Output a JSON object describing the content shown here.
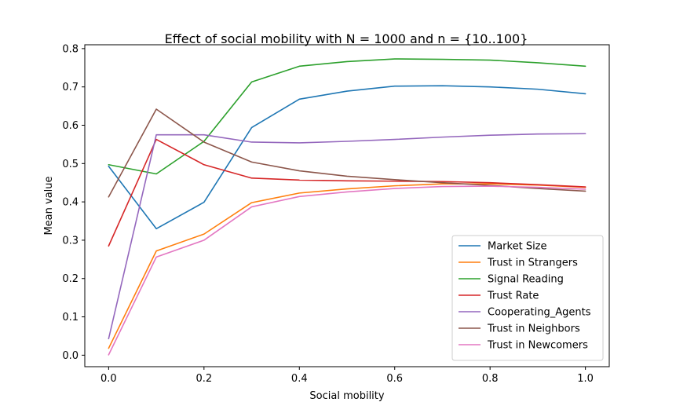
{
  "chart_data": {
    "type": "line",
    "title": "Effect of social mobility with N = 1000 and n = {10..100}",
    "xlabel": "Social mobility",
    "ylabel": "Mean value",
    "xlim": [
      -0.05,
      1.05
    ],
    "ylim": [
      -0.03,
      0.81
    ],
    "xticks": [
      0.0,
      0.2,
      0.4,
      0.6,
      0.8,
      1.0
    ],
    "xtick_labels": [
      "0.0",
      "0.2",
      "0.4",
      "0.6",
      "0.8",
      "1.0"
    ],
    "yticks": [
      0.0,
      0.1,
      0.2,
      0.3,
      0.4,
      0.5,
      0.6,
      0.7,
      0.8
    ],
    "ytick_labels": [
      "0.0",
      "0.1",
      "0.2",
      "0.3",
      "0.4",
      "0.5",
      "0.6",
      "0.7",
      "0.8"
    ],
    "grid": false,
    "legend_position": "bottom-right",
    "x": [
      0.0,
      0.1,
      0.2,
      0.3,
      0.4,
      0.5,
      0.6,
      0.7,
      0.8,
      0.9,
      1.0
    ],
    "series": [
      {
        "name": "Market Size",
        "color": "#1f77b4",
        "values": [
          0.493,
          0.33,
          0.399,
          0.594,
          0.668,
          0.689,
          0.702,
          0.703,
          0.7,
          0.694,
          0.682
        ]
      },
      {
        "name": "Trust in Strangers",
        "color": "#ff7f0e",
        "values": [
          0.018,
          0.272,
          0.316,
          0.398,
          0.423,
          0.434,
          0.442,
          0.447,
          0.447,
          0.444,
          0.438
        ]
      },
      {
        "name": "Signal Reading",
        "color": "#2ca02c",
        "values": [
          0.497,
          0.473,
          0.558,
          0.713,
          0.754,
          0.766,
          0.773,
          0.772,
          0.77,
          0.763,
          0.754
        ]
      },
      {
        "name": "Trust Rate",
        "color": "#d62728",
        "values": [
          0.285,
          0.563,
          0.497,
          0.462,
          0.457,
          0.455,
          0.454,
          0.453,
          0.45,
          0.445,
          0.439
        ]
      },
      {
        "name": "Cooperating_Agents",
        "color": "#9467bd",
        "values": [
          0.043,
          0.575,
          0.575,
          0.556,
          0.554,
          0.558,
          0.563,
          0.569,
          0.574,
          0.577,
          0.578
        ]
      },
      {
        "name": "Trust in Neighbors",
        "color": "#8c564b",
        "values": [
          0.413,
          0.642,
          0.556,
          0.504,
          0.481,
          0.467,
          0.458,
          0.45,
          0.443,
          0.435,
          0.428
        ]
      },
      {
        "name": "Trust in Newcomers",
        "color": "#e377c2",
        "values": [
          0.001,
          0.256,
          0.3,
          0.387,
          0.414,
          0.426,
          0.435,
          0.44,
          0.441,
          0.438,
          0.433
        ]
      }
    ]
  }
}
